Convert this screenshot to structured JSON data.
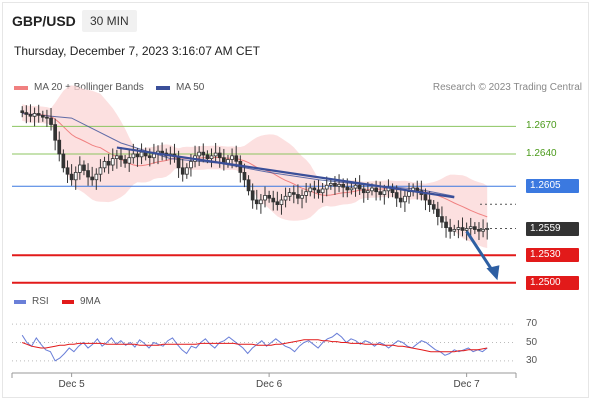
{
  "header": {
    "symbol": "GBP/USD",
    "timeframe": "30 MIN",
    "datetime": "Thursday, December 7, 2023 3:16:07 AM CET"
  },
  "legend": {
    "ma20_label": "MA 20 + Bollinger Bands",
    "ma50_label": "MA 50",
    "credit": "Research © 2023 Trading Central"
  },
  "colors": {
    "ma20": "#f08080",
    "ma50": "#3a4f99",
    "band": "#fbd6d6",
    "up": "#ffffff",
    "down": "#333333",
    "resistance": "#8cc560",
    "pivot": "#3b79e0",
    "support": "#e21a1a",
    "rsi": "#6a7fd8",
    "rsi_ma": "#e21a1a",
    "arrow": "#2e5fa3"
  },
  "levels": [
    {
      "value": 1.267,
      "label": "1.2670",
      "type": "resistance"
    },
    {
      "value": 1.264,
      "label": "1.2640",
      "type": "resistance"
    },
    {
      "value": 1.2605,
      "label": "1.2605",
      "type": "pivot"
    },
    {
      "value": 1.2559,
      "label": "1.2559",
      "type": "last"
    },
    {
      "value": 1.253,
      "label": "1.2530",
      "type": "support"
    },
    {
      "value": 1.25,
      "label": "1.2500",
      "type": "support"
    }
  ],
  "rsi_legend": {
    "rsi_label": "RSI",
    "ma_label": "9MA",
    "levels": [
      70,
      50,
      30
    ],
    "level_labels": [
      "70",
      "50",
      "30"
    ]
  },
  "x_labels": [
    {
      "label": "Dec 5",
      "t": 12
    },
    {
      "label": "Dec 6",
      "t": 60
    },
    {
      "label": "Dec 7",
      "t": 108
    }
  ],
  "chart_data": {
    "type": "candlestick",
    "x_range": [
      -2,
      120
    ],
    "y_range": [
      1.249,
      1.269
    ],
    "rsi_range": [
      20,
      80
    ],
    "closes": [
      1.2685,
      1.2683,
      1.2681,
      1.2684,
      1.2682,
      1.268,
      1.2679,
      1.2672,
      1.2655,
      1.264,
      1.2625,
      1.2618,
      1.2612,
      1.262,
      1.2628,
      1.2622,
      1.2615,
      1.2612,
      1.2618,
      1.2625,
      1.2632,
      1.2628,
      1.2635,
      1.2638,
      1.2634,
      1.263,
      1.2636,
      1.264,
      1.2637,
      1.2642,
      1.2638,
      1.2636,
      1.264,
      1.2643,
      1.2641,
      1.2638,
      1.264,
      1.2637,
      1.2625,
      1.2618,
      1.2625,
      1.2632,
      1.2638,
      1.2642,
      1.2639,
      1.2635,
      1.2638,
      1.2641,
      1.2636,
      1.263,
      1.2634,
      1.2638,
      1.2632,
      1.262,
      1.2612,
      1.26,
      1.259,
      1.2586,
      1.259,
      1.2595,
      1.2592,
      1.2588,
      1.2585,
      1.259,
      1.2594,
      1.2598,
      1.2596,
      1.2592,
      1.2595,
      1.2599,
      1.2603,
      1.2601,
      1.2598,
      1.2602,
      1.2606,
      1.2608,
      1.2605,
      1.2607,
      1.2604,
      1.2601,
      1.2603,
      1.2606,
      1.2602,
      1.2598,
      1.26,
      1.2603,
      1.2599,
      1.2596,
      1.26,
      1.2603,
      1.2598,
      1.2592,
      1.2588,
      1.2594,
      1.2599,
      1.2603,
      1.26,
      1.2596,
      1.259,
      1.2585,
      1.258,
      1.2572,
      1.2566,
      1.256,
      1.2556,
      1.2558,
      1.256,
      1.2557,
      1.2559,
      1.2561,
      1.2558,
      1.2556,
      1.2558,
      1.2559
    ],
    "ma50_line": [
      [
        0,
        1.2684
      ],
      [
        12,
        1.2679
      ],
      [
        24,
        1.2652
      ],
      [
        36,
        1.2635
      ],
      [
        48,
        1.263
      ],
      [
        60,
        1.262
      ],
      [
        72,
        1.2612
      ],
      [
        84,
        1.2606
      ],
      [
        96,
        1.2602
      ],
      [
        105,
        1.2594
      ]
    ],
    "trendline": [
      [
        23,
        1.2647
      ],
      [
        105,
        1.2593
      ]
    ],
    "forecast_arrow": [
      [
        108,
        1.2556
      ],
      [
        115,
        1.2505
      ]
    ],
    "rsi": [
      58,
      50,
      46,
      55,
      48,
      42,
      40,
      30,
      33,
      38,
      44,
      40,
      46,
      50,
      44,
      48,
      54,
      46,
      50,
      55,
      48,
      52,
      47,
      50,
      45,
      53,
      49,
      44,
      50,
      48,
      46,
      52,
      55,
      48,
      42,
      38,
      46,
      44,
      50,
      54,
      48,
      44,
      50,
      52,
      56,
      52,
      48,
      44,
      38,
      44,
      48,
      52,
      46,
      50,
      54,
      50,
      46,
      44,
      40,
      46,
      50,
      52,
      48,
      44,
      50,
      54,
      56,
      60,
      56,
      50,
      54,
      52,
      48,
      52,
      50,
      46,
      50,
      48,
      44,
      48,
      52,
      50,
      46,
      44,
      48,
      52,
      50,
      46,
      42,
      40,
      36,
      38,
      42,
      40,
      42,
      44,
      40,
      42,
      40,
      44
    ],
    "rsi_ma": [
      50,
      48,
      46,
      45,
      44,
      44,
      45,
      46,
      47,
      47,
      48,
      48,
      49,
      49,
      49,
      49,
      49,
      49,
      48,
      48,
      48,
      48,
      48,
      48,
      48,
      47,
      47,
      47,
      47,
      47,
      48,
      48,
      48,
      48,
      48,
      48,
      48,
      48,
      49,
      49,
      49,
      49,
      49,
      49,
      49,
      49,
      48,
      48,
      48,
      48,
      47,
      47,
      47,
      47,
      48,
      48,
      49,
      50,
      51,
      52,
      53,
      53,
      53,
      53,
      52,
      52,
      51,
      51,
      50,
      50,
      49,
      49,
      49,
      48,
      48,
      48,
      48,
      47,
      47,
      47,
      46,
      46,
      45,
      44,
      43,
      42,
      41,
      40,
      40,
      40,
      40,
      40,
      40,
      41,
      41,
      42,
      42,
      42,
      43,
      44
    ]
  }
}
